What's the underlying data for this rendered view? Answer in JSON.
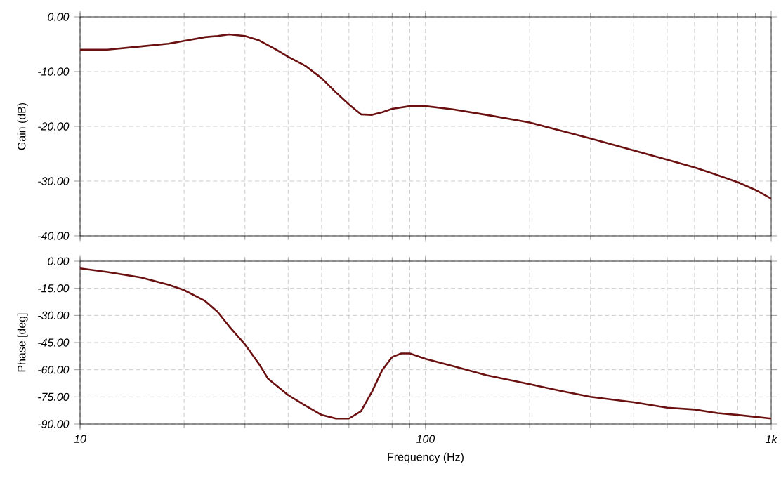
{
  "chart_data": [
    {
      "type": "line",
      "ylabel": "Gain (dB)",
      "log": "x",
      "grid": true,
      "tick_labels": "y",
      "xlim": [
        10,
        1000
      ],
      "xticks": [
        10,
        100,
        1000
      ],
      "ylim": [
        -40,
        0
      ],
      "yticks": [
        {
          "value": -40,
          "label": "-40.00"
        },
        {
          "value": -30,
          "label": "-30.00"
        },
        {
          "value": -20,
          "label": "-20.00"
        },
        {
          "value": -10,
          "label": "-10.00"
        },
        {
          "value": 0,
          "label": "0.00"
        }
      ],
      "series": [
        {
          "color": "#6b1010",
          "x": [
            10,
            12,
            15,
            18,
            20,
            23,
            25,
            27,
            30,
            33,
            37,
            40,
            45,
            50,
            55,
            60,
            65,
            70,
            75,
            80,
            90,
            100,
            120,
            150,
            200,
            250,
            300,
            400,
            500,
            600,
            700,
            800,
            900,
            1000
          ],
          "values": [
            -6.0,
            -6.0,
            -5.4,
            -4.9,
            -4.4,
            -3.7,
            -3.5,
            -3.2,
            -3.5,
            -4.3,
            -6.0,
            -7.3,
            -9.0,
            -11.2,
            -13.8,
            -16.0,
            -17.8,
            -17.9,
            -17.4,
            -16.8,
            -16.3,
            -16.3,
            -16.9,
            -17.9,
            -19.3,
            -20.9,
            -22.2,
            -24.4,
            -26.1,
            -27.5,
            -28.9,
            -30.2,
            -31.6,
            -33.2
          ]
        }
      ]
    },
    {
      "type": "line",
      "xlabel": "Frequency (Hz)",
      "ylabel": "Phase [deg]",
      "log": "x",
      "grid": true,
      "xlim": [
        10,
        1000
      ],
      "xticks": [
        10,
        100,
        {
          "value": 1000,
          "label": "1k"
        }
      ],
      "ylim": [
        -90,
        0
      ],
      "yticks": [
        {
          "value": -90,
          "label": "-90.00"
        },
        {
          "value": -75,
          "label": "-75.00"
        },
        {
          "value": -60,
          "label": "-60.00"
        },
        {
          "value": -45,
          "label": "-45.00"
        },
        {
          "value": -30,
          "label": "-30.00"
        },
        {
          "value": -15,
          "label": "-15.00"
        },
        {
          "value": 0,
          "label": "0.00"
        }
      ],
      "series": [
        {
          "color": "#6b1010",
          "x": [
            10,
            12,
            15,
            18,
            20,
            23,
            25,
            27,
            30,
            33,
            35,
            40,
            45,
            50,
            55,
            60,
            65,
            70,
            75,
            80,
            85,
            90,
            100,
            120,
            150,
            200,
            250,
            300,
            400,
            500,
            600,
            700,
            800,
            1000
          ],
          "values": [
            -4,
            -6,
            -9,
            -13,
            -16,
            -22,
            -28,
            -36,
            -46,
            -57,
            -65,
            -74,
            -80,
            -85,
            -87,
            -87,
            -83,
            -72,
            -60,
            -53,
            -51,
            -51,
            -54,
            -58,
            -63,
            -68,
            -72,
            -75,
            -78,
            -81,
            -82,
            -84,
            -85,
            -87
          ]
        }
      ]
    }
  ]
}
